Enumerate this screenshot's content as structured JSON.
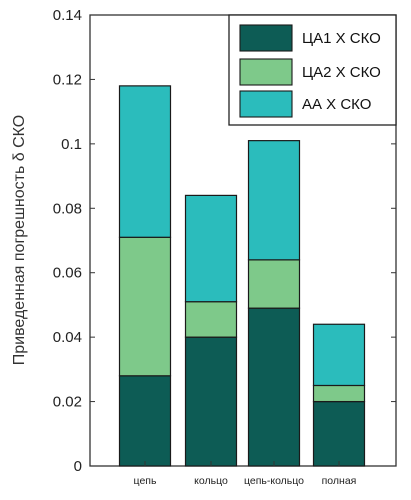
{
  "chart_data": {
    "type": "bar",
    "stacked": true,
    "categories": [
      "цепь",
      "кольцо",
      "цепь-кольцо",
      "полная"
    ],
    "series": [
      {
        "name": "ЦА1 Х СКО",
        "color": "#0d5c55",
        "values": [
          0.028,
          0.04,
          0.049,
          0.02
        ]
      },
      {
        "name": "ЦА2 Х СКО",
        "color": "#7ec98a",
        "values": [
          0.043,
          0.011,
          0.015,
          0.005
        ]
      },
      {
        "name": "АА Х СКО",
        "color": "#2bbcbc",
        "values": [
          0.047,
          0.033,
          0.037,
          0.019
        ]
      }
    ],
    "ylabel": "Приведенная погрешность δ СКО",
    "xlabel": "",
    "ylim": [
      0,
      0.14
    ],
    "yticks": [
      0,
      0.02,
      0.04,
      0.06,
      0.08,
      0.1,
      0.12,
      0.14
    ],
    "ytick_labels": [
      "0",
      "0.02",
      "0.04",
      "0.06",
      "0.08",
      "0.1",
      "0.12",
      "0.14"
    ],
    "legend_position": "top-right",
    "grid": false
  }
}
